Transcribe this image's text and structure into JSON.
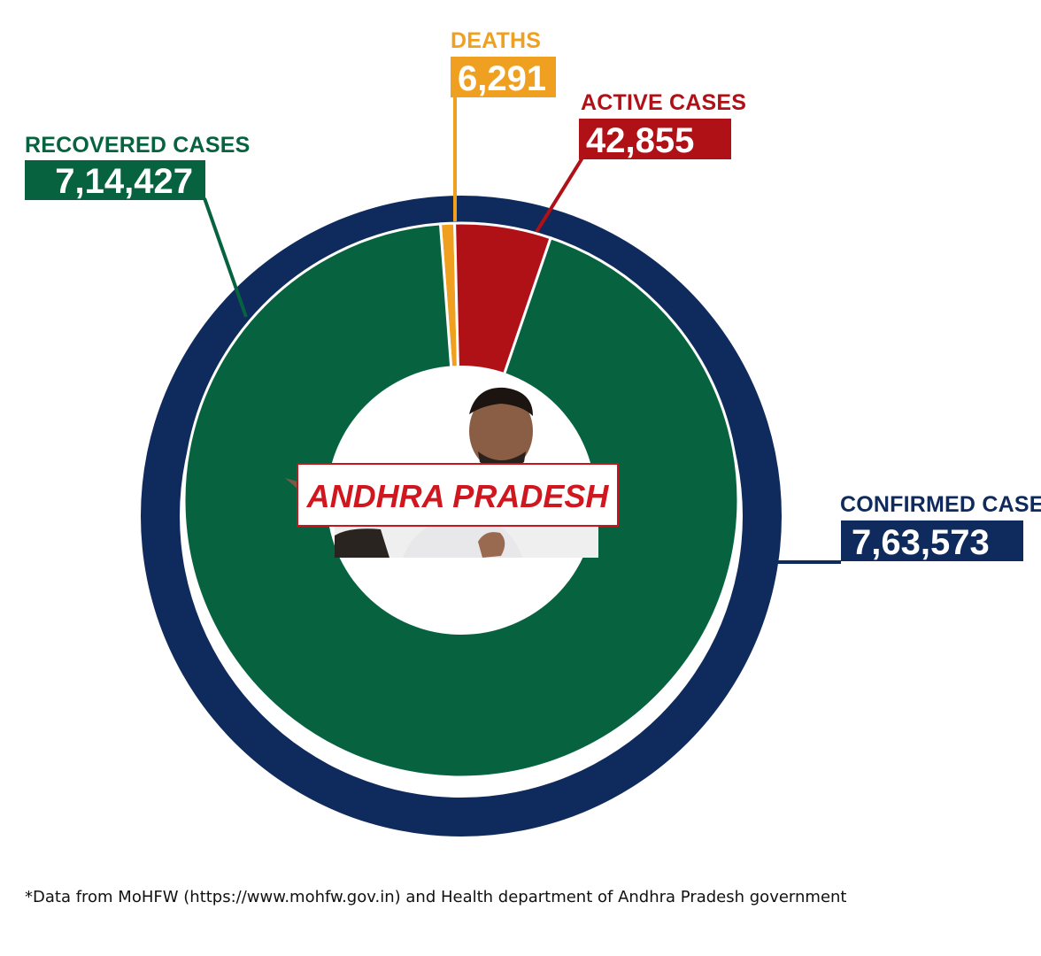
{
  "chart_data": {
    "type": "pie",
    "variant": "nested-donut",
    "center_label": "ANDHRA PRADESH",
    "outer_ring": [
      {
        "label": "CONFIRMED CASES",
        "value": 763573,
        "display": "7,63,573",
        "color": "#0f2a5c"
      }
    ],
    "inner_ring": [
      {
        "label": "RECOVERED CASES",
        "value": 714427,
        "display": "7,14,427",
        "color": "#07633f"
      },
      {
        "label": "DEATHS",
        "value": 6291,
        "display": "6,291",
        "color": "#f0a020"
      },
      {
        "label": "ACTIVE CASES",
        "value": 42855,
        "display": "42,855",
        "color": "#b01116"
      }
    ]
  },
  "center_photo_icon": "chief-minister-photo",
  "footnote": "*Data from MoHFW (https://www.mohfw.gov.in) and Health department of Andhra Pradesh government"
}
